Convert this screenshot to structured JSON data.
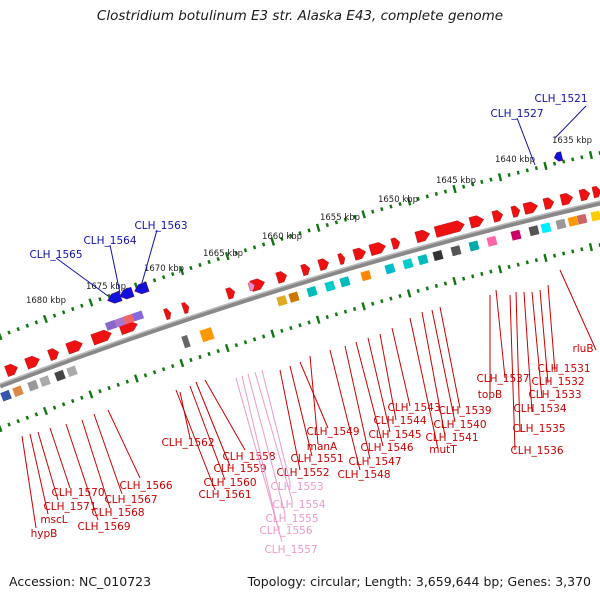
{
  "title": "Clostridium botulinum E3 str. Alaska E43, complete genome",
  "accession": "Accession: NC_010723",
  "summary": "Topology: circular; Length: 3,659,644 bp; Genes: 3,370",
  "colors": {
    "forward_gene": "#ee1111",
    "reverse_gene": "#1111dd",
    "gene_label": "#cc0000",
    "highlight_label": "#1111aa",
    "rna_label": "#ee99cc",
    "backbone": "#888888",
    "tick": "#117711"
  },
  "tick_labels": [
    "1635 kbp",
    "1640 kbp",
    "1645 kbp",
    "1650 kbp",
    "1655 kbp",
    "1660 kbp",
    "1665 kbp",
    "1670 kbp",
    "1675 kbp",
    "1680 kbp"
  ],
  "top_labels": [
    "CLH_1521",
    "CLH_1527",
    "CLH_1563",
    "CLH_1564",
    "CLH_1565"
  ],
  "right_labels": [
    "rluB",
    "CLH_1531",
    "CLH_1532",
    "CLH_1533",
    "CLH_1534",
    "CLH_1535",
    "CLH_1536",
    "CLH_1537",
    "topB"
  ],
  "middle_labels": [
    "CLH_1543",
    "CLH_1539",
    "CLH_1544",
    "CLH_1540",
    "CLH_1545",
    "CLH_1541",
    "CLH_1546",
    "mutT",
    "CLH_1547",
    "CLH_1548",
    "CLH_1549",
    "manA",
    "CLH_1551",
    "CLH_1552",
    "CLH_1562",
    "CLH_1558",
    "CLH_1559",
    "CLH_1560",
    "CLH_1561"
  ],
  "rna_labels": [
    "CLH_1553",
    "CLH_1554",
    "CLH_1555",
    "CLH_1556",
    "CLH_1557"
  ],
  "left_labels": [
    "CLH_1566",
    "CLH_1567",
    "CLH_1568",
    "CLH_1569",
    "CLH_1570",
    "CLH_1571",
    "mscL",
    "hypB"
  ]
}
